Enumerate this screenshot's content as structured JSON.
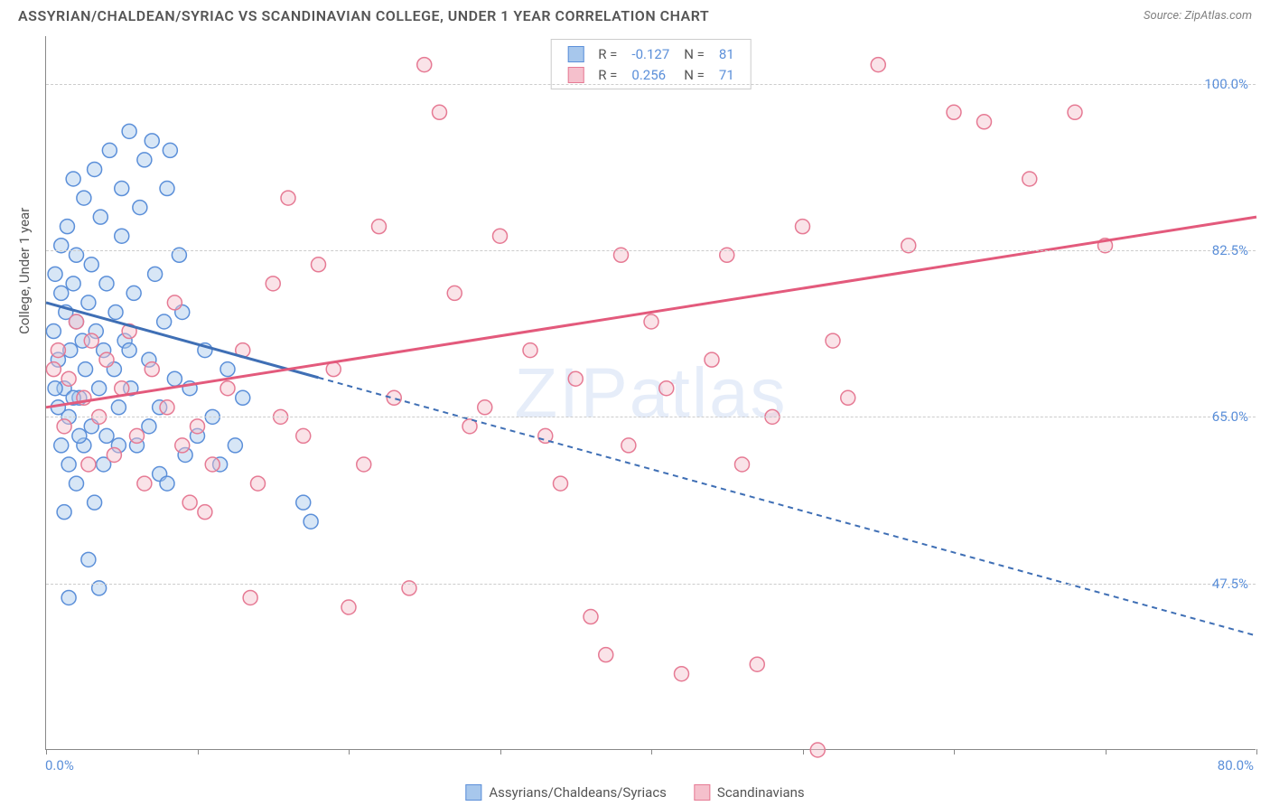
{
  "title": "ASSYRIAN/CHALDEAN/SYRIAC VS SCANDINAVIAN COLLEGE, UNDER 1 YEAR CORRELATION CHART",
  "source_label": "Source:",
  "source_name": "ZipAtlas.com",
  "ylabel": "College, Under 1 year",
  "watermark": "ZIPatlas",
  "chart": {
    "type": "scatter",
    "xlim": [
      0,
      80
    ],
    "ylim": [
      30,
      105
    ],
    "x_min_label": "0.0%",
    "x_max_label": "80.0%",
    "y_ticks": [
      47.5,
      65.0,
      82.5,
      100.0
    ],
    "y_tick_labels": [
      "47.5%",
      "65.0%",
      "82.5%",
      "100.0%"
    ],
    "x_tick_positions": [
      0,
      10,
      20,
      30,
      40,
      50,
      60,
      70,
      80
    ],
    "background_color": "#ffffff",
    "grid_color": "#cccccc",
    "axis_color": "#888888",
    "marker_radius": 8,
    "marker_opacity": 0.45,
    "series": [
      {
        "name": "Assyrians/Chaldeans/Syriacs",
        "color_fill": "#a7c7ec",
        "color_stroke": "#5b8fd9",
        "R": "-0.127",
        "N": "81",
        "trend": {
          "x1": 0,
          "y1": 77,
          "x2": 80,
          "y2": 42,
          "solid_until_x": 18,
          "color": "#3f6fb5"
        },
        "points": [
          [
            0.5,
            74
          ],
          [
            0.6,
            80
          ],
          [
            0.8,
            71
          ],
          [
            1.0,
            78
          ],
          [
            1.0,
            83
          ],
          [
            1.2,
            68
          ],
          [
            1.3,
            76
          ],
          [
            1.4,
            85
          ],
          [
            1.5,
            65
          ],
          [
            1.6,
            72
          ],
          [
            1.8,
            79
          ],
          [
            1.8,
            90
          ],
          [
            2.0,
            75
          ],
          [
            2.0,
            82
          ],
          [
            2.2,
            67
          ],
          [
            2.4,
            73
          ],
          [
            2.5,
            88
          ],
          [
            2.6,
            70
          ],
          [
            2.8,
            77
          ],
          [
            3.0,
            64
          ],
          [
            3.0,
            81
          ],
          [
            3.2,
            91
          ],
          [
            3.3,
            74
          ],
          [
            3.5,
            68
          ],
          [
            3.6,
            86
          ],
          [
            3.8,
            72
          ],
          [
            4.0,
            63
          ],
          [
            4.0,
            79
          ],
          [
            4.2,
            93
          ],
          [
            4.5,
            70
          ],
          [
            4.6,
            76
          ],
          [
            4.8,
            66
          ],
          [
            5.0,
            84
          ],
          [
            5.0,
            89
          ],
          [
            5.2,
            73
          ],
          [
            5.5,
            95
          ],
          [
            5.6,
            68
          ],
          [
            5.8,
            78
          ],
          [
            6.0,
            62
          ],
          [
            6.2,
            87
          ],
          [
            6.5,
            92
          ],
          [
            6.8,
            71
          ],
          [
            7.0,
            94
          ],
          [
            7.2,
            80
          ],
          [
            7.5,
            66
          ],
          [
            7.8,
            75
          ],
          [
            8.0,
            89
          ],
          [
            8.2,
            93
          ],
          [
            8.5,
            69
          ],
          [
            8.8,
            82
          ],
          [
            1.0,
            62
          ],
          [
            1.5,
            60
          ],
          [
            2.0,
            58
          ],
          [
            2.5,
            62
          ],
          [
            1.2,
            55
          ],
          [
            3.5,
            47
          ],
          [
            2.8,
            50
          ],
          [
            0.8,
            66
          ],
          [
            4.8,
            62
          ],
          [
            3.2,
            56
          ],
          [
            1.8,
            67
          ],
          [
            5.5,
            72
          ],
          [
            6.8,
            64
          ],
          [
            7.5,
            59
          ],
          [
            9.0,
            76
          ],
          [
            9.5,
            68
          ],
          [
            10.0,
            63
          ],
          [
            10.5,
            72
          ],
          [
            11.0,
            65
          ],
          [
            12.0,
            70
          ],
          [
            12.5,
            62
          ],
          [
            13.0,
            67
          ],
          [
            1.5,
            46
          ],
          [
            0.6,
            68
          ],
          [
            2.2,
            63
          ],
          [
            3.8,
            60
          ],
          [
            8.0,
            58
          ],
          [
            9.2,
            61
          ],
          [
            11.5,
            60
          ],
          [
            17.0,
            56
          ],
          [
            17.5,
            54
          ]
        ]
      },
      {
        "name": "Scandinavians",
        "color_fill": "#f5c0cc",
        "color_stroke": "#e67a94",
        "R": "0.256",
        "N": "71",
        "trend": {
          "x1": 0,
          "y1": 66,
          "x2": 80,
          "y2": 86,
          "solid_until_x": 80,
          "color": "#e35a7c"
        },
        "points": [
          [
            0.8,
            72
          ],
          [
            1.5,
            69
          ],
          [
            2.0,
            75
          ],
          [
            2.5,
            67
          ],
          [
            3.0,
            73
          ],
          [
            3.5,
            65
          ],
          [
            4.0,
            71
          ],
          [
            5.0,
            68
          ],
          [
            5.5,
            74
          ],
          [
            6.0,
            63
          ],
          [
            7.0,
            70
          ],
          [
            8.0,
            66
          ],
          [
            8.5,
            77
          ],
          [
            9.0,
            62
          ],
          [
            10.0,
            64
          ],
          [
            11.0,
            60
          ],
          [
            12.0,
            68
          ],
          [
            13.0,
            72
          ],
          [
            14.0,
            58
          ],
          [
            15.0,
            79
          ],
          [
            15.5,
            65
          ],
          [
            16.0,
            88
          ],
          [
            17.0,
            63
          ],
          [
            18.0,
            81
          ],
          [
            19.0,
            70
          ],
          [
            20.0,
            45
          ],
          [
            21.0,
            60
          ],
          [
            22.0,
            85
          ],
          [
            23.0,
            67
          ],
          [
            24.0,
            47
          ],
          [
            25.0,
            102
          ],
          [
            26.0,
            97
          ],
          [
            27.0,
            78
          ],
          [
            28.0,
            64
          ],
          [
            30.0,
            84
          ],
          [
            32.0,
            72
          ],
          [
            33.0,
            63
          ],
          [
            35.0,
            69
          ],
          [
            36.0,
            44
          ],
          [
            37.0,
            40
          ],
          [
            38.0,
            82
          ],
          [
            40.0,
            75
          ],
          [
            41.0,
            68
          ],
          [
            42.0,
            38
          ],
          [
            44.0,
            71
          ],
          [
            45.0,
            82
          ],
          [
            47.0,
            39
          ],
          [
            50.0,
            85
          ],
          [
            51.0,
            30
          ],
          [
            52.0,
            73
          ],
          [
            55.0,
            102
          ],
          [
            57.0,
            83
          ],
          [
            60.0,
            97
          ],
          [
            62.0,
            96
          ],
          [
            65.0,
            90
          ],
          [
            68.0,
            97
          ],
          [
            70.0,
            83
          ],
          [
            48.0,
            65
          ],
          [
            13.5,
            46
          ],
          [
            10.5,
            55
          ],
          [
            6.5,
            58
          ],
          [
            4.5,
            61
          ],
          [
            2.8,
            60
          ],
          [
            1.2,
            64
          ],
          [
            0.5,
            70
          ],
          [
            9.5,
            56
          ],
          [
            29.0,
            66
          ],
          [
            34.0,
            58
          ],
          [
            38.5,
            62
          ],
          [
            46.0,
            60
          ],
          [
            53.0,
            67
          ]
        ]
      }
    ]
  },
  "colors": {
    "title_text": "#555555",
    "source_text": "#808080",
    "tick_text": "#5b8fd9",
    "label_text": "#555555"
  }
}
